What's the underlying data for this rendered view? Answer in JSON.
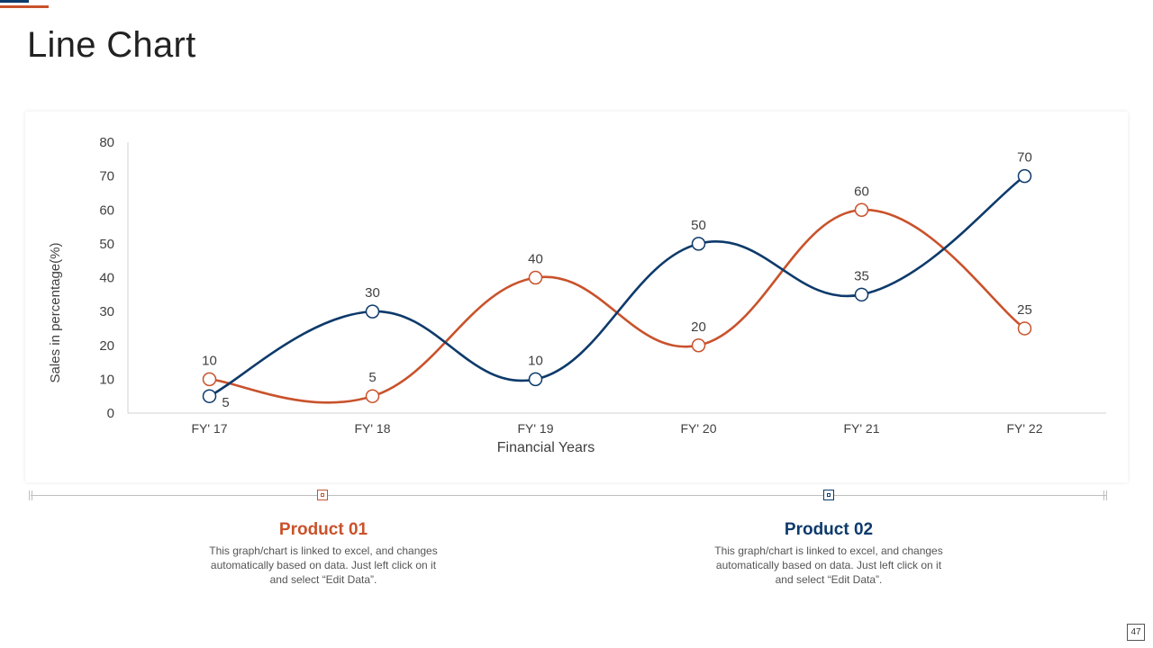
{
  "page": {
    "title": "Line Chart",
    "page_number": "47"
  },
  "colors": {
    "product_01": "#c9522b",
    "product_02": "#0d3a6b"
  },
  "chart_data": {
    "type": "line",
    "smooth": true,
    "categories": [
      "FY' 17",
      "FY' 18",
      "FY' 19",
      "FY' 20",
      "FY' 21",
      "FY' 22"
    ],
    "series": [
      {
        "name": "Product 01",
        "color": "#c9522b",
        "values": [
          10,
          5,
          40,
          20,
          60,
          25
        ]
      },
      {
        "name": "Product 02",
        "color": "#0d3a6b",
        "values": [
          5,
          30,
          10,
          50,
          35,
          70
        ]
      }
    ],
    "xlabel": "Financial Years",
    "ylabel": "Sales in percentage(%)",
    "ylim": [
      0,
      80
    ],
    "yticks": [
      0,
      10,
      20,
      30,
      40,
      50,
      60,
      70,
      80
    ],
    "grid": false,
    "legend": "none"
  },
  "products": [
    {
      "title": "Product 01",
      "description": "This graph/chart is linked to excel, and changes automatically based on data. Just left click on it and select “Edit Data”."
    },
    {
      "title": "Product 02",
      "description": "This graph/chart is linked to excel, and changes automatically based on data. Just left click on it and select “Edit Data”."
    }
  ]
}
